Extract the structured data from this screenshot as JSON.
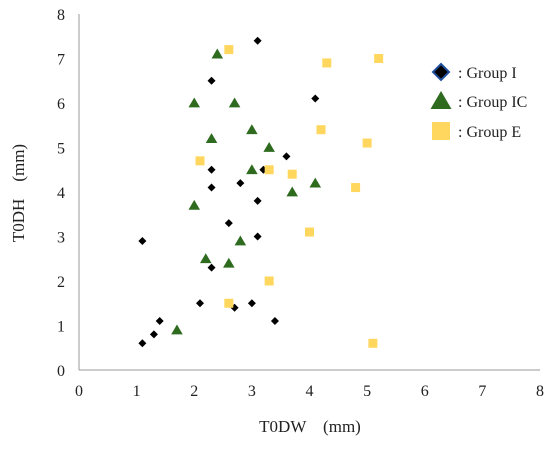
{
  "chart_data": {
    "type": "scatter",
    "xlabel": "T0DW　(mm)",
    "ylabel": "T0DH　(mm)",
    "xlim": [
      0,
      8
    ],
    "ylim": [
      0,
      8
    ],
    "xticks": [
      "0",
      "1",
      "2",
      "3",
      "4",
      "5",
      "6",
      "7",
      "8"
    ],
    "yticks": [
      "0",
      "1",
      "2",
      "3",
      "4",
      "5",
      "6",
      "7",
      "8"
    ],
    "grid": false,
    "legend_position": "right",
    "series": [
      {
        "name": ": Group I",
        "marker": "diamond",
        "color": "#000000",
        "points": [
          [
            1.1,
            0.6
          ],
          [
            1.3,
            0.8
          ],
          [
            1.4,
            1.1
          ],
          [
            1.1,
            2.9
          ],
          [
            2.1,
            1.5
          ],
          [
            2.3,
            2.3
          ],
          [
            2.3,
            4.1
          ],
          [
            2.3,
            4.5
          ],
          [
            2.3,
            6.5
          ],
          [
            2.6,
            3.3
          ],
          [
            2.7,
            1.4
          ],
          [
            2.8,
            4.2
          ],
          [
            3.0,
            1.5
          ],
          [
            3.1,
            3.0
          ],
          [
            3.1,
            3.8
          ],
          [
            3.1,
            7.4
          ],
          [
            3.2,
            4.5
          ],
          [
            3.4,
            1.1
          ],
          [
            3.6,
            4.8
          ],
          [
            4.1,
            6.1
          ]
        ]
      },
      {
        "name": ": Group IC",
        "marker": "triangle",
        "color": "#2e6b1f",
        "points": [
          [
            1.7,
            0.9
          ],
          [
            2.0,
            3.7
          ],
          [
            2.0,
            6.0
          ],
          [
            2.2,
            2.5
          ],
          [
            2.3,
            5.2
          ],
          [
            2.4,
            7.1
          ],
          [
            2.6,
            2.4
          ],
          [
            2.7,
            6.0
          ],
          [
            2.8,
            2.9
          ],
          [
            3.0,
            4.5
          ],
          [
            3.0,
            5.4
          ],
          [
            3.3,
            5.0
          ],
          [
            3.7,
            4.0
          ],
          [
            4.1,
            4.2
          ]
        ]
      },
      {
        "name": ": Group E",
        "marker": "square",
        "color": "#ffd75e",
        "points": [
          [
            2.1,
            4.7
          ],
          [
            2.6,
            1.5
          ],
          [
            2.6,
            7.2
          ],
          [
            3.3,
            2.0
          ],
          [
            3.3,
            4.5
          ],
          [
            3.7,
            4.4
          ],
          [
            4.0,
            3.1
          ],
          [
            4.2,
            5.4
          ],
          [
            4.3,
            6.9
          ],
          [
            4.8,
            4.1
          ],
          [
            5.0,
            5.1
          ],
          [
            5.1,
            0.6
          ],
          [
            5.2,
            7.0
          ]
        ]
      }
    ]
  }
}
